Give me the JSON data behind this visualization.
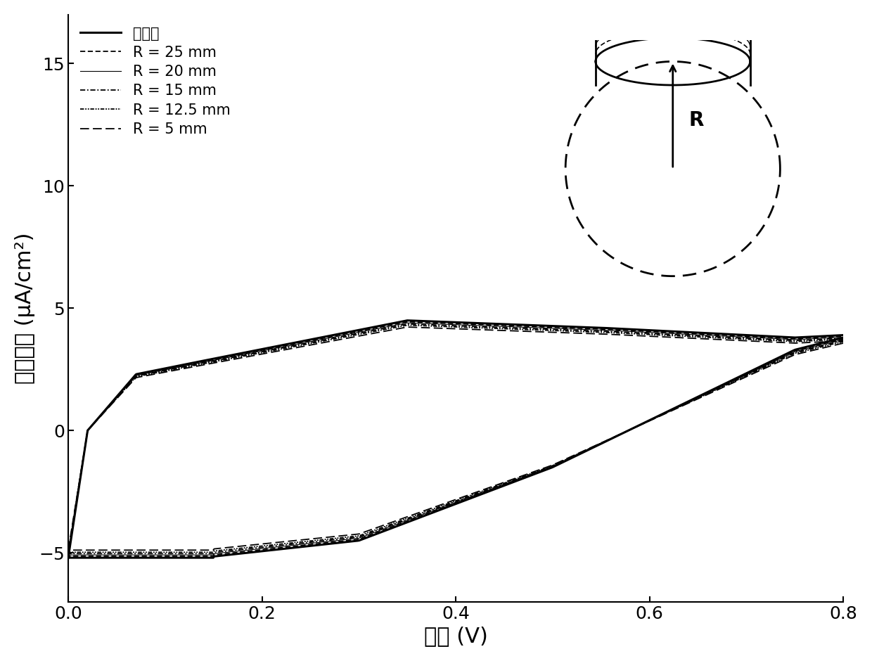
{
  "xlabel": "电压 (V)",
  "ylabel": "电流密度 (μA/cm²)",
  "xlim": [
    0.0,
    0.8
  ],
  "ylim": [
    -7,
    17
  ],
  "yticks": [
    -5,
    0,
    5,
    10,
    15
  ],
  "xticks": [
    0.0,
    0.2,
    0.4,
    0.6,
    0.8
  ],
  "legend_labels": [
    "弯曲前",
    "R = 25 mm",
    "R = 20 mm",
    "R = 15 mm",
    "R = 12.5 mm",
    "R = 5 mm"
  ],
  "background_color": "#ffffff",
  "line_color": "#000000",
  "arrow_label": "R"
}
